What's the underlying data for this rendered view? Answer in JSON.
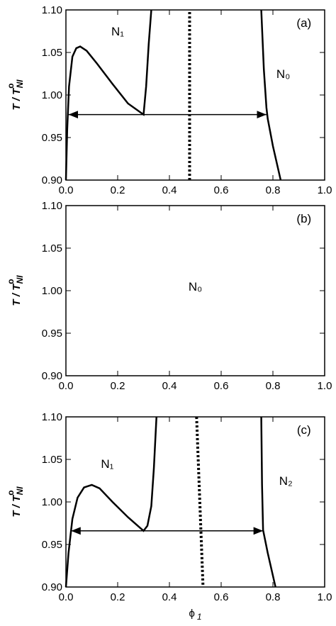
{
  "chart_data": [
    {
      "type": "line",
      "panel_label": "(a)",
      "ylabel": {
        "main": "T / T",
        "sup": "o",
        "sub": "NI"
      },
      "xlim": [
        0,
        1
      ],
      "ylim": [
        0.9,
        1.1
      ],
      "xticks": [
        {
          "value": 0,
          "label": "0.0"
        },
        0.2,
        0.4,
        0.6,
        0.8,
        {
          "value": 1,
          "label": "1.0"
        }
      ],
      "yticks": [
        {
          "value": 0.9,
          "label": "0.90"
        },
        0.95,
        {
          "value": 1,
          "label": "1.00"
        },
        1.05,
        {
          "value": 1.1,
          "label": "1.10"
        }
      ],
      "annotations": [
        {
          "text": "N₁"
        },
        {
          "text": "N₀"
        }
      ],
      "lines": [
        {
          "style": "solid",
          "x": [
            0.0,
            0.005,
            0.012,
            0.025,
            0.04,
            0.055,
            0.08,
            0.12,
            0.18,
            0.24,
            0.3,
            0.31,
            0.32,
            0.33
          ],
          "y": [
            0.9,
            0.96,
            1.01,
            1.045,
            1.055,
            1.057,
            1.052,
            1.037,
            1.013,
            0.99,
            0.977,
            1.01,
            1.06,
            1.1
          ]
        },
        {
          "style": "dotted",
          "x": [
            0.478,
            0.478
          ],
          "y": [
            0.9,
            1.1
          ]
        },
        {
          "style": "solid",
          "x": [
            0.755,
            0.765,
            0.775,
            0.78,
            0.8,
            0.83
          ],
          "y": [
            1.1,
            1.03,
            0.985,
            0.972,
            0.94,
            0.9
          ]
        }
      ],
      "tie_lines": [
        {
          "x": [
            0.01,
            0.775
          ],
          "y": 0.977
        }
      ]
    },
    {
      "type": "line",
      "panel_label": "(b)",
      "ylabel": {
        "main": "T / T",
        "sup": "o",
        "sub": "NI"
      },
      "xlim": [
        0,
        1
      ],
      "ylim": [
        0.9,
        1.1
      ],
      "xticks": [
        {
          "value": 0,
          "label": "0.0"
        },
        0.2,
        0.4,
        0.6,
        0.8,
        {
          "value": 1,
          "label": "1.0"
        }
      ],
      "yticks": [
        {
          "value": 0.9,
          "label": "0.90"
        },
        0.95,
        {
          "value": 1,
          "label": "1.00"
        },
        1.05,
        {
          "value": 1.1,
          "label": "1.10"
        }
      ],
      "annotations": [
        {
          "text": "N₀"
        }
      ],
      "lines": [],
      "tie_lines": []
    },
    {
      "type": "line",
      "panel_label": "(c)",
      "ylabel": {
        "main": "T / T",
        "sup": "o",
        "sub": "NI"
      },
      "xlabel": {
        "main": "ϕ",
        "sub": "1"
      },
      "xlim": [
        0,
        1
      ],
      "ylim": [
        0.9,
        1.1
      ],
      "xticks": [
        {
          "value": 0,
          "label": "0.0"
        },
        0.2,
        0.4,
        0.6,
        0.8,
        {
          "value": 1,
          "label": "1.0"
        }
      ],
      "yticks": [
        {
          "value": 0.9,
          "label": "0.90"
        },
        0.95,
        {
          "value": 1,
          "label": "1.00"
        },
        1.05,
        {
          "value": 1.1,
          "label": "1.10"
        }
      ],
      "annotations": [
        {
          "text": "N₁"
        },
        {
          "text": "N₂"
        }
      ],
      "lines": [
        {
          "style": "solid",
          "x": [
            0.0,
            0.01,
            0.025,
            0.045,
            0.07,
            0.1,
            0.13,
            0.18,
            0.24,
            0.3,
            0.315,
            0.33,
            0.34,
            0.35
          ],
          "y": [
            0.9,
            0.94,
            0.98,
            1.005,
            1.017,
            1.02,
            1.016,
            1.0,
            0.982,
            0.966,
            0.972,
            0.995,
            1.04,
            1.1
          ]
        },
        {
          "style": "dotted",
          "x": [
            0.505,
            0.53
          ],
          "y": [
            1.1,
            0.9
          ]
        },
        {
          "style": "solid",
          "x": [
            0.755,
            0.758,
            0.762,
            0.78,
            0.81
          ],
          "y": [
            1.1,
            1.02,
            0.967,
            0.94,
            0.9
          ]
        }
      ],
      "tie_lines": [
        {
          "x": [
            0.02,
            0.762
          ],
          "y": 0.966
        }
      ]
    }
  ]
}
